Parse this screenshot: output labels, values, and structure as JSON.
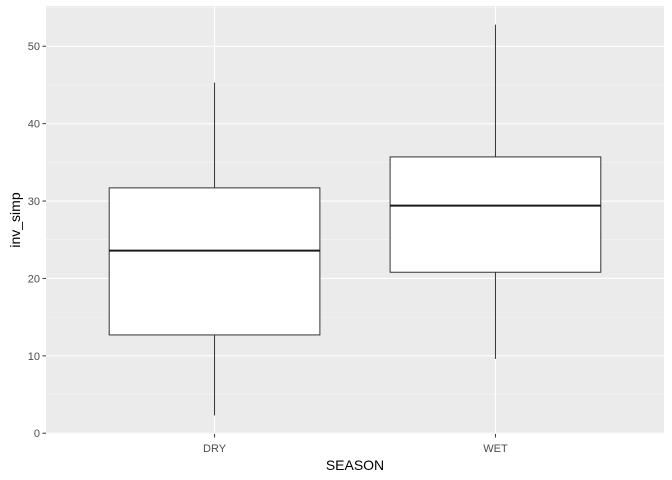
{
  "chart_data": {
    "type": "boxplot",
    "xlabel": "SEASON",
    "ylabel": "inv_simp",
    "categories": [
      "DRY",
      "WET"
    ],
    "boxes": [
      {
        "category": "DRY",
        "min": 2.3,
        "q1": 12.7,
        "median": 23.6,
        "q3": 31.7,
        "max": 45.3
      },
      {
        "category": "WET",
        "min": 9.6,
        "q1": 20.8,
        "median": 29.4,
        "q3": 35.7,
        "max": 52.8
      }
    ],
    "ylim": [
      -0.1,
      55.2
    ],
    "yticks": [
      0,
      10,
      20,
      30,
      40,
      50
    ],
    "grid": true,
    "colors": {
      "panel_background": "#ebebeb",
      "grid_major": "#ffffff",
      "grid_minor": "#f5f5f5",
      "box_fill": "#ffffff",
      "box_stroke": "#333333",
      "median": "#1a1a1a"
    }
  }
}
